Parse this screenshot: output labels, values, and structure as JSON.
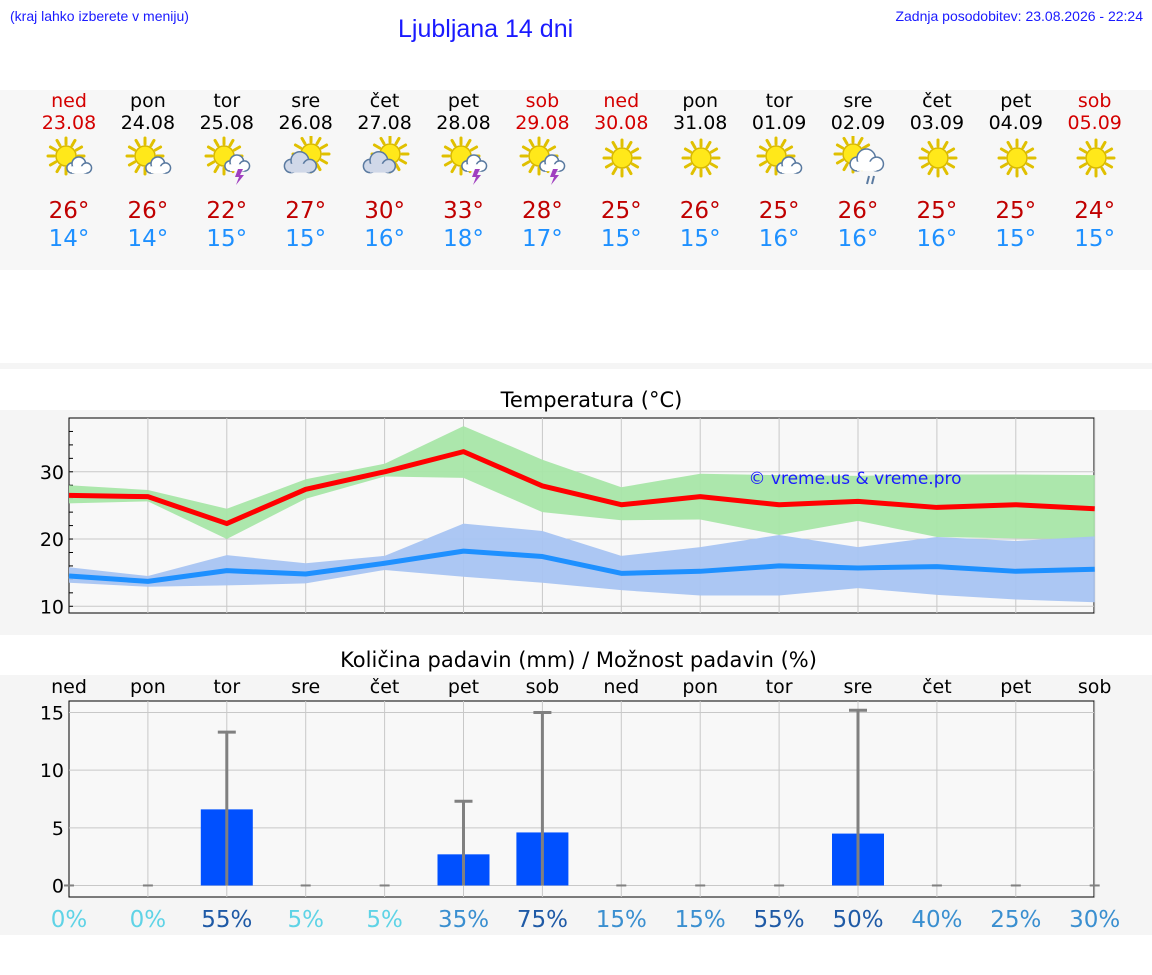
{
  "header": {
    "hint": "(kraj lahko izberete v meniju)",
    "title": "Ljubljana 14 dni",
    "updated": "Zadnja posodobitev: 23.08.2026 - 22:24"
  },
  "days": [
    {
      "name": "ned",
      "date": "23.08",
      "weekend": true,
      "icon": "sun-cloud-icon",
      "tmax": "26°",
      "tmin": "14°"
    },
    {
      "name": "pon",
      "date": "24.08",
      "weekend": false,
      "icon": "sun-cloud-icon",
      "tmax": "26°",
      "tmin": "14°"
    },
    {
      "name": "tor",
      "date": "25.08",
      "weekend": false,
      "icon": "sun-thunder-icon",
      "tmax": "22°",
      "tmin": "15°"
    },
    {
      "name": "sre",
      "date": "26.08",
      "weekend": false,
      "icon": "cloud-sun-icon",
      "tmax": "27°",
      "tmin": "15°"
    },
    {
      "name": "čet",
      "date": "27.08",
      "weekend": false,
      "icon": "cloud-sun-icon",
      "tmax": "30°",
      "tmin": "16°"
    },
    {
      "name": "pet",
      "date": "28.08",
      "weekend": false,
      "icon": "sun-thunder-icon",
      "tmax": "33°",
      "tmin": "18°"
    },
    {
      "name": "sob",
      "date": "29.08",
      "weekend": true,
      "icon": "sun-thunder-icon",
      "tmax": "28°",
      "tmin": "17°"
    },
    {
      "name": "ned",
      "date": "30.08",
      "weekend": true,
      "icon": "sun-icon",
      "tmax": "25°",
      "tmin": "15°"
    },
    {
      "name": "pon",
      "date": "31.08",
      "weekend": false,
      "icon": "sun-icon",
      "tmax": "26°",
      "tmin": "15°"
    },
    {
      "name": "tor",
      "date": "01.09",
      "weekend": false,
      "icon": "sun-cloud-icon",
      "tmax": "25°",
      "tmin": "16°"
    },
    {
      "name": "sre",
      "date": "02.09",
      "weekend": false,
      "icon": "sun-rain-icon",
      "tmax": "26°",
      "tmin": "16°"
    },
    {
      "name": "čet",
      "date": "03.09",
      "weekend": false,
      "icon": "sun-icon",
      "tmax": "25°",
      "tmin": "16°"
    },
    {
      "name": "pet",
      "date": "04.09",
      "weekend": false,
      "icon": "sun-icon",
      "tmax": "25°",
      "tmin": "15°"
    },
    {
      "name": "sob",
      "date": "05.09",
      "weekend": true,
      "icon": "sun-icon",
      "tmax": "24°",
      "tmin": "15°"
    }
  ],
  "colors": {
    "weekend": "#d40000",
    "weekday": "#000000",
    "tmax": "#c00000",
    "tmin": "#1e90ff",
    "line_max": "#ff0000",
    "band_max": "#a8e6a8",
    "line_min": "#1e90ff",
    "band_min": "#a8c4f2",
    "bar": "#0050ff",
    "whisker": "#808080",
    "watermark": "#1a1aff"
  },
  "chart_data": [
    {
      "type": "line",
      "title": "Temperatura (°C)",
      "watermark": "© vreme.us & vreme.pro",
      "x": [
        "ned",
        "pon",
        "tor",
        "sre",
        "čet",
        "pet",
        "sob",
        "ned",
        "pon",
        "tor",
        "sre",
        "čet",
        "pet",
        "sob"
      ],
      "series": [
        {
          "values": [
            26.5,
            26.3,
            22.3,
            27.4,
            30.0,
            33.0,
            27.9,
            25.1,
            26.3,
            25.1,
            25.6,
            24.7,
            25.1,
            24.5
          ],
          "band_low": [
            25.3,
            25.6,
            20.0,
            26.0,
            29.3,
            29.1,
            24.0,
            22.8,
            22.9,
            20.6,
            22.7,
            20.3,
            20.1,
            20.0
          ],
          "band_high": [
            28.0,
            27.3,
            24.5,
            28.9,
            31.2,
            36.8,
            31.8,
            27.7,
            29.7,
            29.5,
            29.4,
            29.6,
            29.6,
            29.5
          ]
        },
        {
          "values": [
            14.5,
            13.7,
            15.3,
            14.8,
            16.4,
            18.2,
            17.4,
            14.9,
            15.2,
            16.0,
            15.7,
            15.9,
            15.2,
            15.5
          ],
          "band_low": [
            13.5,
            12.9,
            13.1,
            13.4,
            15.4,
            14.4,
            13.5,
            12.4,
            11.6,
            11.6,
            12.7,
            11.7,
            11.0,
            10.6
          ],
          "band_high": [
            15.8,
            14.5,
            17.6,
            16.4,
            17.5,
            22.3,
            21.2,
            17.5,
            18.8,
            20.6,
            18.8,
            20.3,
            19.7,
            20.4
          ]
        }
      ],
      "ylim": [
        9,
        38
      ],
      "yticks": [
        10,
        20,
        30
      ]
    },
    {
      "type": "bar",
      "title": "Količina padavin (mm) / Možnost padavin (%)",
      "categories": [
        "ned",
        "pon",
        "tor",
        "sre",
        "čet",
        "pet",
        "sob",
        "ned",
        "pon",
        "tor",
        "sre",
        "čet",
        "pet",
        "sob"
      ],
      "values": [
        0,
        0,
        6.6,
        0,
        0,
        2.7,
        4.6,
        0,
        0,
        0,
        4.5,
        0,
        0,
        0
      ],
      "max": [
        0,
        0,
        13.3,
        0,
        0,
        7.3,
        15.0,
        0,
        0,
        0,
        15.2,
        0,
        0,
        0
      ],
      "chance": [
        "0%",
        "0%",
        "55%",
        "5%",
        "5%",
        "35%",
        "75%",
        "15%",
        "15%",
        "55%",
        "50%",
        "40%",
        "25%",
        "30%"
      ],
      "chance_colors": [
        "#5fd3e6",
        "#5fd3e6",
        "#1f5aa6",
        "#5fd3e6",
        "#5fd3e6",
        "#3a8fd0",
        "#1f5aa6",
        "#3a8fd0",
        "#3a8fd0",
        "#1f5aa6",
        "#1f5aa6",
        "#3a8fd0",
        "#3a8fd0",
        "#3a8fd0"
      ],
      "ylim": [
        -1,
        16
      ],
      "yticks": [
        0,
        5,
        10,
        15
      ]
    }
  ]
}
